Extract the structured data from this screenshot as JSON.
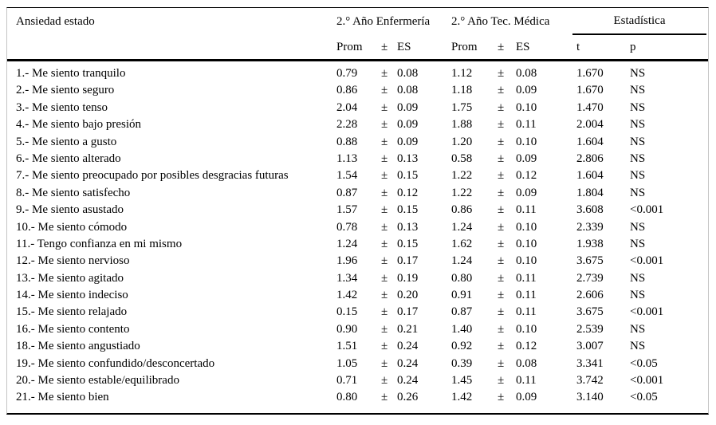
{
  "table": {
    "header": {
      "label": "Ansiedad estado",
      "group1": "2.° Año Enfermería",
      "group2": "2.° Año Tec. Médica",
      "group3": "Estadística",
      "sub": {
        "prom": "Prom",
        "pm": "±",
        "es": "ES",
        "t": "t",
        "p": "p"
      }
    },
    "rows": [
      {
        "label": "1.- Me siento tranquilo",
        "prom1": "0.79",
        "es1": "0.08",
        "prom2": "1.12",
        "es2": "0.08",
        "t": "1.670",
        "p": "NS"
      },
      {
        "label": "2.- Me siento seguro",
        "prom1": "0.86",
        "es1": "0.08",
        "prom2": "1.18",
        "es2": "0.09",
        "t": "1.670",
        "p": "NS"
      },
      {
        "label": "3.- Me siento tenso",
        "prom1": "2.04",
        "es1": "0.09",
        "prom2": "1.75",
        "es2": "0.10",
        "t": "1.470",
        "p": "NS"
      },
      {
        "label": "4.- Me siento bajo presión",
        "prom1": "2.28",
        "es1": "0.09",
        "prom2": "1.88",
        "es2": "0.11",
        "t": "2.004",
        "p": "NS"
      },
      {
        "label": "5.- Me siento a gusto",
        "prom1": "0.88",
        "es1": "0.09",
        "prom2": "1.20",
        "es2": "0.10",
        "t": "1.604",
        "p": "NS"
      },
      {
        "label": "6.- Me siento alterado",
        "prom1": "1.13",
        "es1": "0.13",
        "prom2": "0.58",
        "es2": "0.09",
        "t": "2.806",
        "p": "NS"
      },
      {
        "label": "7.- Me siento preocupado por posibles desgracias futuras",
        "prom1": "1.54",
        "es1": "0.15",
        "prom2": "1.22",
        "es2": "0.12",
        "t": "1.604",
        "p": "NS"
      },
      {
        "label": "8.- Me siento satisfecho",
        "prom1": "0.87",
        "es1": "0.12",
        "prom2": "1.22",
        "es2": "0.09",
        "t": "1.804",
        "p": "NS"
      },
      {
        "label": "9.- Me siento asustado",
        "prom1": "1.57",
        "es1": "0.15",
        "prom2": "0.86",
        "es2": "0.11",
        "t": "3.608",
        "p": "<0.001"
      },
      {
        "label": "10.- Me siento cómodo",
        "prom1": "0.78",
        "es1": "0.13",
        "prom2": "1.24",
        "es2": "0.10",
        "t": "2.339",
        "p": "NS"
      },
      {
        "label": "11.- Tengo confianza en mi mismo",
        "prom1": "1.24",
        "es1": "0.15",
        "prom2": "1.62",
        "es2": "0.10",
        "t": "1.938",
        "p": "NS"
      },
      {
        "label": "12.- Me siento nervioso",
        "prom1": "1.96",
        "es1": "0.17",
        "prom2": "1.24",
        "es2": "0.10",
        "t": "3.675",
        "p": "<0.001"
      },
      {
        "label": "13.- Me siento agitado",
        "prom1": "1.34",
        "es1": "0.19",
        "prom2": "0.80",
        "es2": "0.11",
        "t": "2.739",
        "p": "NS"
      },
      {
        "label": "14.- Me siento indeciso",
        "prom1": "1.42",
        "es1": "0.20",
        "prom2": "0.91",
        "es2": "0.11",
        "t": "2.606",
        "p": "NS"
      },
      {
        "label": "15.- Me siento relajado",
        "prom1": "0.15",
        "es1": "0.17",
        "prom2": "0.87",
        "es2": "0.11",
        "t": "3.675",
        "p": "<0.001"
      },
      {
        "label": "16.- Me siento contento",
        "prom1": "0.90",
        "es1": "0.21",
        "prom2": "1.40",
        "es2": "0.10",
        "t": "2.539",
        "p": "NS"
      },
      {
        "label": "18.- Me siento angustiado",
        "prom1": "1.51",
        "es1": "0.24",
        "prom2": "0.92",
        "es2": "0.12",
        "t": "3.007",
        "p": "NS"
      },
      {
        "label": "19.- Me siento confundido/desconcertado",
        "prom1": "1.05",
        "es1": "0.24",
        "prom2": "0.39",
        "es2": "0.08",
        "t": "3.341",
        "p": "<0.05"
      },
      {
        "label": "20.- Me siento estable/equilibrado",
        "prom1": "0.71",
        "es1": "0.24",
        "prom2": "1.45",
        "es2": "0.11",
        "t": "3.742",
        "p": "<0.001"
      },
      {
        "label": "21.- Me siento bien",
        "prom1": "0.80",
        "es1": "0.26",
        "prom2": "1.42",
        "es2": "0.09",
        "t": "3.140",
        "p": "<0.05"
      }
    ]
  }
}
